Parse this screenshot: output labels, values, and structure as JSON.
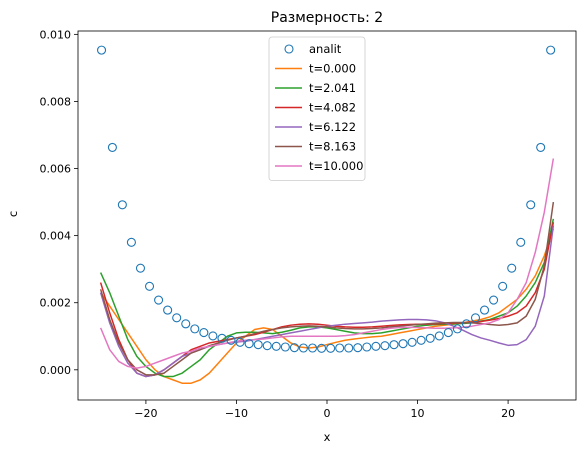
{
  "chart_data": {
    "type": "line",
    "title": "Размерность: 2",
    "xlabel": "x",
    "ylabel": "c",
    "xlim": [
      -27.5,
      27.5
    ],
    "ylim": [
      -0.0009,
      0.0101
    ],
    "xticks": [
      -20,
      -10,
      0,
      10,
      20
    ],
    "xtick_labels": [
      "−20",
      "−10",
      "0",
      "10",
      "20"
    ],
    "yticks": [
      0.0,
      0.002,
      0.004,
      0.006,
      0.008,
      0.01
    ],
    "ytick_labels": [
      "0.000",
      "0.002",
      "0.004",
      "0.006",
      "0.008",
      "0.010"
    ],
    "grid": false,
    "legend_position": "top-center",
    "scatter": {
      "name": "analit",
      "color": "#1f77b4",
      "x": [
        -24.9,
        -23.7,
        -22.6,
        -21.6,
        -20.6,
        -19.6,
        -18.6,
        -17.6,
        -16.6,
        -15.6,
        -14.6,
        -13.6,
        -12.6,
        -11.6,
        -10.6,
        -9.6,
        -8.6,
        -7.6,
        -6.6,
        -5.6,
        -4.6,
        -3.6,
        -2.6,
        -1.6,
        -0.6,
        0.4,
        1.4,
        2.4,
        3.4,
        4.4,
        5.4,
        6.4,
        7.4,
        8.4,
        9.4,
        10.4,
        11.4,
        12.4,
        13.4,
        14.4,
        15.4,
        16.4,
        17.4,
        18.4,
        19.4,
        20.4,
        21.4,
        22.5,
        23.6,
        24.7
      ],
      "y": [
        0.00953,
        0.00663,
        0.00492,
        0.0038,
        0.00303,
        0.00249,
        0.00208,
        0.00178,
        0.00155,
        0.00137,
        0.00122,
        0.00111,
        0.00101,
        0.00094,
        0.00088,
        0.00082,
        0.00078,
        0.00075,
        0.00072,
        0.0007,
        0.00068,
        0.00066,
        0.00065,
        0.00065,
        0.00064,
        0.00064,
        0.00065,
        0.00065,
        0.00066,
        0.00068,
        0.0007,
        0.00072,
        0.00075,
        0.00078,
        0.00082,
        0.00088,
        0.00094,
        0.00101,
        0.00111,
        0.00122,
        0.00137,
        0.00155,
        0.00178,
        0.00208,
        0.00249,
        0.00303,
        0.0038,
        0.00492,
        0.00663,
        0.00953
      ]
    },
    "series": [
      {
        "name": "t=0.000",
        "color": "#ff7f0e",
        "x": [
          -25,
          -24,
          -23,
          -22,
          -21,
          -20,
          -19,
          -18,
          -17,
          -16,
          -15,
          -14,
          -13,
          -12,
          -11,
          -10,
          -9,
          -8,
          -7,
          -6,
          -5,
          -4,
          -3,
          -2,
          -1,
          0,
          1,
          2,
          3,
          4,
          5,
          6,
          7,
          8,
          9,
          10,
          11,
          12,
          13,
          14,
          15,
          16,
          17,
          18,
          19,
          20,
          21,
          22,
          23,
          24,
          25
        ],
        "y": [
          0.0023,
          0.0019,
          0.0015,
          0.0011,
          0.0007,
          0.0003,
          0.0,
          -0.0002,
          -0.0003,
          -0.0004,
          -0.0004,
          -0.0003,
          -0.0001,
          0.0002,
          0.0005,
          0.0008,
          0.001,
          0.0012,
          0.00125,
          0.0012,
          0.001,
          0.0008,
          0.00068,
          0.00065,
          0.00068,
          0.00075,
          0.00082,
          0.00088,
          0.00092,
          0.00095,
          0.00098,
          0.001,
          0.00105,
          0.0011,
          0.00115,
          0.0012,
          0.00125,
          0.0013,
          0.00133,
          0.00136,
          0.0014,
          0.00145,
          0.0015,
          0.00158,
          0.0017,
          0.0019,
          0.0021,
          0.0024,
          0.0028,
          0.0034,
          0.0042
        ]
      },
      {
        "name": "t=2.041",
        "color": "#2ca02c",
        "x": [
          -25,
          -24,
          -23,
          -22,
          -21,
          -20,
          -19,
          -18,
          -17,
          -16,
          -15,
          -14,
          -13,
          -12,
          -11,
          -10,
          -9,
          -8,
          -7,
          -6,
          -5,
          -4,
          -3,
          -2,
          -1,
          0,
          1,
          2,
          3,
          4,
          5,
          6,
          7,
          8,
          9,
          10,
          11,
          12,
          13,
          14,
          15,
          16,
          17,
          18,
          19,
          20,
          21,
          22,
          23,
          24,
          25
        ],
        "y": [
          0.0029,
          0.0023,
          0.0016,
          0.0009,
          0.0004,
          0.0001,
          -0.0001,
          -0.0002,
          -0.0002,
          -0.0001,
          0.0001,
          0.0003,
          0.0006,
          0.0008,
          0.001,
          0.0011,
          0.00112,
          0.00112,
          0.0011,
          0.00108,
          0.00112,
          0.00118,
          0.00125,
          0.00128,
          0.00128,
          0.00125,
          0.0012,
          0.00115,
          0.0011,
          0.00108,
          0.00108,
          0.0011,
          0.00115,
          0.0012,
          0.00125,
          0.0013,
          0.00133,
          0.00135,
          0.00136,
          0.00137,
          0.00138,
          0.0014,
          0.00145,
          0.0015,
          0.0016,
          0.0017,
          0.0019,
          0.0022,
          0.0026,
          0.0032,
          0.0045
        ]
      },
      {
        "name": "t=4.082",
        "color": "#d62728",
        "x": [
          -25,
          -24,
          -23,
          -22,
          -21,
          -20,
          -19,
          -18,
          -17,
          -16,
          -15,
          -14,
          -13,
          -12,
          -11,
          -10,
          -9,
          -8,
          -7,
          -6,
          -5,
          -4,
          -3,
          -2,
          -1,
          0,
          1,
          2,
          3,
          4,
          5,
          6,
          7,
          8,
          9,
          10,
          11,
          12,
          13,
          14,
          15,
          16,
          17,
          18,
          19,
          20,
          21,
          22,
          23,
          24,
          25
        ],
        "y": [
          0.0026,
          0.0017,
          0.0009,
          0.0003,
          -0.0001,
          -0.0002,
          -0.00015,
          0.0,
          0.0002,
          0.0004,
          0.0006,
          0.0007,
          0.0008,
          0.00085,
          0.0009,
          0.00095,
          0.001,
          0.00105,
          0.00112,
          0.0012,
          0.00128,
          0.00133,
          0.00136,
          0.00137,
          0.00136,
          0.00133,
          0.0013,
          0.00128,
          0.00127,
          0.00127,
          0.00128,
          0.0013,
          0.00132,
          0.00134,
          0.00135,
          0.00136,
          0.00136,
          0.00137,
          0.00138,
          0.00139,
          0.0014,
          0.00142,
          0.00144,
          0.00148,
          0.00153,
          0.0016,
          0.0017,
          0.0019,
          0.0023,
          0.003,
          0.0044
        ]
      },
      {
        "name": "t=6.122",
        "color": "#9467bd",
        "x": [
          -25,
          -24,
          -23,
          -22,
          -21,
          -20,
          -19,
          -18,
          -17,
          -16,
          -15,
          -14,
          -13,
          -12,
          -11,
          -10,
          -9,
          -8,
          -7,
          -6,
          -5,
          -4,
          -3,
          -2,
          -1,
          0,
          1,
          2,
          3,
          4,
          5,
          6,
          7,
          8,
          9,
          10,
          11,
          12,
          13,
          14,
          15,
          16,
          17,
          18,
          19,
          20,
          21,
          22,
          23,
          24,
          25
        ],
        "y": [
          0.0023,
          0.0014,
          0.0007,
          0.0002,
          -0.0001,
          -0.0002,
          -0.00015,
          0.0,
          0.0002,
          0.0004,
          0.0005,
          0.0006,
          0.0007,
          0.00075,
          0.0008,
          0.00083,
          0.00085,
          0.0009,
          0.00095,
          0.001,
          0.00105,
          0.0011,
          0.00115,
          0.0012,
          0.00125,
          0.0013,
          0.00133,
          0.00136,
          0.00138,
          0.0014,
          0.00142,
          0.00145,
          0.00147,
          0.00149,
          0.0015,
          0.0015,
          0.00149,
          0.00146,
          0.0014,
          0.0013,
          0.00118,
          0.00105,
          0.00095,
          0.00088,
          0.0008,
          0.00073,
          0.00075,
          0.0009,
          0.0013,
          0.0022,
          0.0043
        ]
      },
      {
        "name": "t=8.163",
        "color": "#8c564b",
        "x": [
          -25,
          -24,
          -23,
          -22,
          -21,
          -20,
          -19,
          -18,
          -17,
          -16,
          -15,
          -14,
          -13,
          -12,
          -11,
          -10,
          -9,
          -8,
          -7,
          -6,
          -5,
          -4,
          -3,
          -2,
          -1,
          0,
          1,
          2,
          3,
          4,
          5,
          6,
          7,
          8,
          9,
          10,
          11,
          12,
          13,
          14,
          15,
          16,
          17,
          18,
          19,
          20,
          21,
          22,
          23,
          24,
          25
        ],
        "y": [
          0.0024,
          0.0015,
          0.0008,
          0.0003,
          0.0,
          -0.00015,
          -0.00015,
          -0.0001,
          0.0001,
          0.0003,
          0.0005,
          0.0006,
          0.00072,
          0.0008,
          0.00088,
          0.00095,
          0.001,
          0.00108,
          0.00115,
          0.0012,
          0.00125,
          0.00128,
          0.0013,
          0.00131,
          0.0013,
          0.00128,
          0.00125,
          0.00123,
          0.00122,
          0.00122,
          0.00123,
          0.00125,
          0.00128,
          0.0013,
          0.00133,
          0.00135,
          0.00137,
          0.00139,
          0.0014,
          0.00141,
          0.00141,
          0.0014,
          0.00138,
          0.00135,
          0.00133,
          0.00135,
          0.0014,
          0.0016,
          0.0021,
          0.0031,
          0.005
        ]
      },
      {
        "name": "t=10.000",
        "color": "#e377c2",
        "x": [
          -25,
          -24,
          -23,
          -22,
          -21,
          -20,
          -19,
          -18,
          -17,
          -16,
          -15,
          -14,
          -13,
          -12,
          -11,
          -10,
          -9,
          -8,
          -7,
          -6,
          -5,
          -4,
          -3,
          -2,
          -1,
          0,
          1,
          2,
          3,
          4,
          5,
          6,
          7,
          8,
          9,
          10,
          11,
          12,
          13,
          14,
          15,
          16,
          17,
          18,
          19,
          20,
          21,
          22,
          23,
          24,
          25
        ],
        "y": [
          0.00125,
          0.0006,
          0.00025,
          0.0001,
          5e-05,
          0.0001,
          0.0002,
          0.0003,
          0.0004,
          0.0005,
          0.00055,
          0.00065,
          0.0007,
          0.00075,
          0.0008,
          0.00085,
          0.00088,
          0.0009,
          0.00092,
          0.00095,
          0.00098,
          0.001,
          0.001,
          0.001,
          0.001,
          0.001,
          0.001,
          0.00102,
          0.00105,
          0.0011,
          0.00115,
          0.0012,
          0.00124,
          0.00126,
          0.00127,
          0.00126,
          0.00125,
          0.00124,
          0.00124,
          0.00125,
          0.00127,
          0.0013,
          0.00135,
          0.0014,
          0.0015,
          0.0017,
          0.0021,
          0.0026,
          0.0035,
          0.0047,
          0.0063
        ]
      }
    ]
  }
}
